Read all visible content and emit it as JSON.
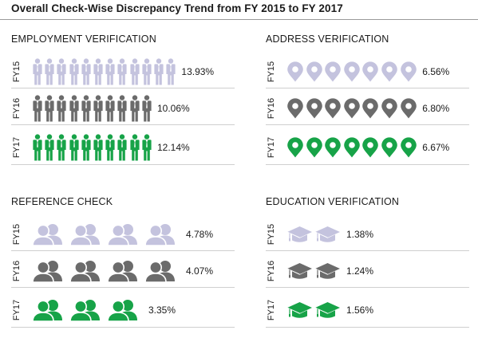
{
  "title": "Overall Check-Wise Discrepancy Trend from FY 2015 to FY 2017",
  "colors": {
    "FY15": "#c4c3de",
    "FY16": "#6b6b6b",
    "FY17": "#17a348"
  },
  "chart_data": [
    {
      "type": "table",
      "title": "EMPLOYMENT VERIFICATION",
      "icon": "businessman-icon",
      "rows": [
        {
          "label": "FY15",
          "icon_count": 12,
          "value": "13.93%"
        },
        {
          "label": "FY16",
          "icon_count": 10,
          "value": "10.06%"
        },
        {
          "label": "FY17",
          "icon_count": 10,
          "value": "12.14%"
        }
      ]
    },
    {
      "type": "table",
      "title": "ADDRESS VERIFICATION",
      "icon": "map-pin-icon",
      "rows": [
        {
          "label": "FY15",
          "icon_count": 7,
          "value": "6.56%"
        },
        {
          "label": "FY16",
          "icon_count": 7,
          "value": "6.80%"
        },
        {
          "label": "FY17",
          "icon_count": 7,
          "value": "6.67%"
        }
      ]
    },
    {
      "type": "table",
      "title": "REFERENCE CHECK",
      "icon": "people-icon",
      "rows": [
        {
          "label": "FY15",
          "icon_count": 4,
          "value": "4.78%"
        },
        {
          "label": "FY16",
          "icon_count": 4,
          "value": "4.07%"
        },
        {
          "label": "FY17",
          "icon_count": 3,
          "value": "3.35%"
        }
      ]
    },
    {
      "type": "table",
      "title": "EDUCATION VERIFICATION",
      "icon": "graduation-cap-icon",
      "rows": [
        {
          "label": "FY15",
          "icon_count": 2,
          "value": "1.38%"
        },
        {
          "label": "FY16",
          "icon_count": 2,
          "value": "1.24%"
        },
        {
          "label": "FY17",
          "icon_count": 2,
          "value": "1.56%"
        }
      ]
    }
  ]
}
